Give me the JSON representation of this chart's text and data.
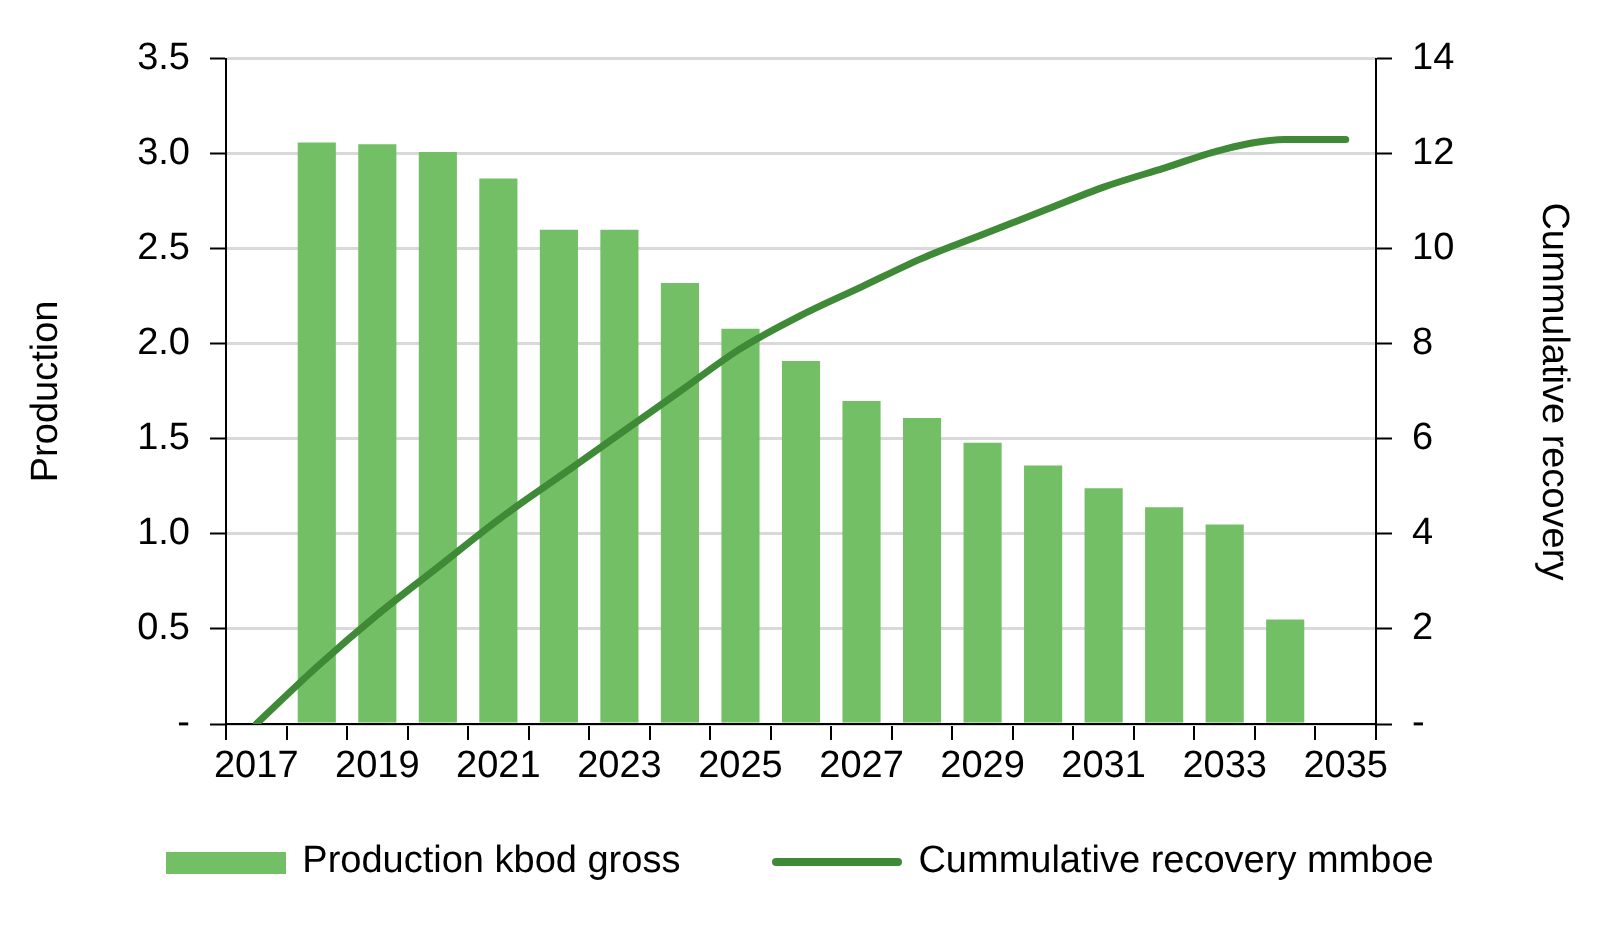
{
  "chart_data": {
    "type": "bar",
    "categories": [
      "2017",
      null,
      "2019",
      null,
      "2021",
      null,
      "2023",
      null,
      "2025",
      null,
      "2027",
      null,
      "2029",
      null,
      "2031",
      null,
      "2033",
      null,
      "2035"
    ],
    "series": [
      {
        "name": "Production kbod gross",
        "color": "#72bf66",
        "values": [
          null,
          3.06,
          3.05,
          3.01,
          2.87,
          2.6,
          2.6,
          2.32,
          2.08,
          1.91,
          1.7,
          1.61,
          1.48,
          1.36,
          1.24,
          1.14,
          1.05,
          0.55,
          null
        ]
      },
      {
        "name": "Cummulative recovery mmboe",
        "type": "line",
        "axis": "y2",
        "color": "#3f8a37",
        "values": [
          0,
          1.2,
          2.3,
          3.3,
          4.3,
          5.2,
          6.1,
          7.0,
          7.9,
          8.6,
          9.2,
          9.8,
          10.3,
          10.8,
          11.3,
          11.7,
          12.1,
          12.3,
          12.3
        ]
      }
    ],
    "ylabel": "Production",
    "y2label": "Cummulative recovery",
    "ylim": [
      0,
      3.5
    ],
    "yticks": [
      {
        "value": 0,
        "label": "-"
      },
      0.5,
      {
        "value": 1,
        "label": "1.0"
      },
      1.5,
      {
        "value": 2,
        "label": "2.0"
      },
      2.5,
      {
        "value": 3,
        "label": "3.0"
      },
      3.5
    ],
    "y2lim": [
      0,
      14
    ],
    "y2ticks": [
      {
        "value": 0,
        "label": "-"
      },
      2,
      4,
      6,
      8,
      10,
      12,
      14
    ],
    "grid": "y",
    "legend": "bottom"
  }
}
